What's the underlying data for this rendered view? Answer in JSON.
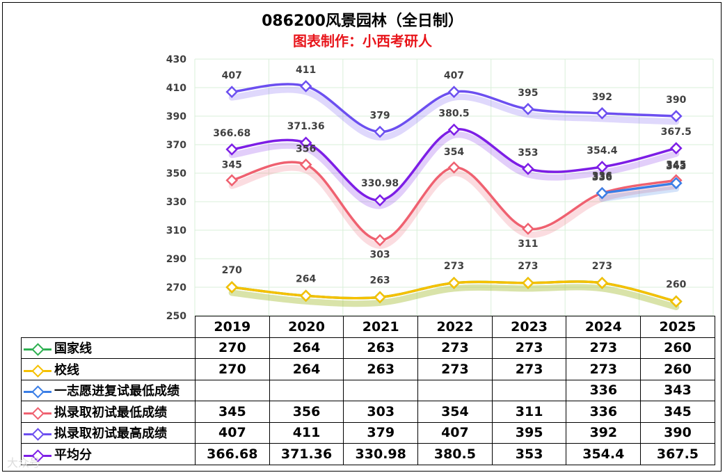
{
  "title": "086200风景园林（全日制）",
  "subtitle": "图表制作：小西考研人",
  "watermark": "大众号",
  "chart_data": {
    "type": "line",
    "title": "086200风景园林（全日制）",
    "subtitle": "图表制作：小西考研人",
    "categories": [
      "2019",
      "2020",
      "2021",
      "2022",
      "2023",
      "2024",
      "2025"
    ],
    "ylim": [
      250,
      430
    ],
    "yticks": [
      250,
      270,
      290,
      310,
      330,
      350,
      370,
      390,
      410,
      430
    ],
    "grid": true,
    "series": [
      {
        "name": "国家线",
        "color": "#2eb051",
        "values": [
          270,
          264,
          263,
          273,
          273,
          273,
          260
        ],
        "display": [
          "270",
          "264",
          "263",
          "273",
          "273",
          "273",
          "260"
        ],
        "labeled": false
      },
      {
        "name": "校线",
        "color": "#f5c000",
        "values": [
          270,
          264,
          263,
          273,
          273,
          273,
          260
        ],
        "display": [
          "270",
          "264",
          "263",
          "273",
          "273",
          "273",
          "260"
        ],
        "labeled": true
      },
      {
        "name": "一志愿进复试最低成绩",
        "color": "#3a7ee6",
        "values": [
          null,
          null,
          null,
          null,
          null,
          336,
          343
        ],
        "display": [
          "",
          "",
          "",
          "",
          "",
          "336",
          "343"
        ],
        "labeled": true
      },
      {
        "name": "拟录取初试最低成绩",
        "color": "#ef6170",
        "values": [
          345,
          356,
          303,
          354,
          311,
          336,
          345
        ],
        "display": [
          "345",
          "356",
          "303",
          "354",
          "311",
          "336",
          "345"
        ],
        "labeled": true
      },
      {
        "name": "拟录取初试最高成绩",
        "color": "#6c4ff0",
        "values": [
          407,
          411,
          379,
          407,
          395,
          392,
          390
        ],
        "display": [
          "407",
          "411",
          "379",
          "407",
          "395",
          "392",
          "390"
        ],
        "labeled": true
      },
      {
        "name": "平均分",
        "color": "#7d1ee6",
        "values": [
          366.68,
          371.36,
          330.98,
          380.5,
          353,
          354.4,
          367.5
        ],
        "display": [
          "366.68",
          "371.36",
          "330.98",
          "380.5",
          "353",
          "354.4",
          "367.5"
        ],
        "labeled": true
      }
    ]
  }
}
